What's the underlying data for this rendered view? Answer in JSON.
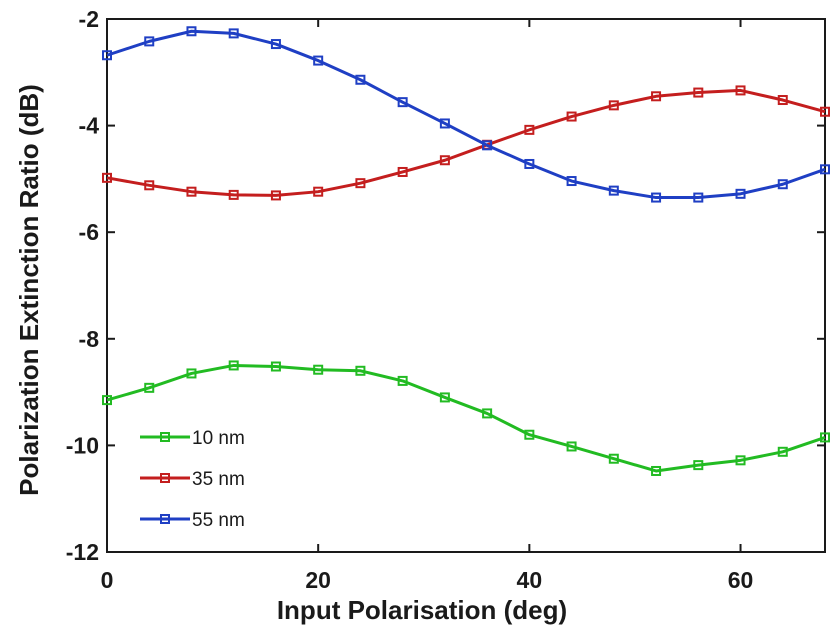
{
  "chart_data": {
    "type": "line",
    "xlabel": "Input Polarisation (deg)",
    "ylabel": "Polarization Extinction Ratio (dB)",
    "xlim": [
      0,
      68
    ],
    "ylim": [
      -12,
      -2
    ],
    "xticks": [
      0,
      20,
      40,
      60
    ],
    "yticks": [
      -12,
      -10,
      -8,
      -6,
      -4,
      -2
    ],
    "x": [
      0,
      4,
      8,
      12,
      16,
      20,
      24,
      28,
      32,
      36,
      40,
      44,
      48,
      52,
      56,
      60,
      64,
      68
    ],
    "series": [
      {
        "name": "10 nm",
        "color": "#22bb22",
        "marker": "square",
        "values": [
          -9.15,
          -8.92,
          -8.65,
          -8.5,
          -8.52,
          -8.58,
          -8.6,
          -8.79,
          -9.1,
          -9.4,
          -9.8,
          -10.02,
          -10.25,
          -10.48,
          -10.37,
          -10.28,
          -10.12,
          -9.85
        ]
      },
      {
        "name": "35 nm",
        "color": "#c41e1e",
        "marker": "square",
        "values": [
          -4.98,
          -5.12,
          -5.24,
          -5.3,
          -5.31,
          -5.24,
          -5.08,
          -4.87,
          -4.65,
          -4.36,
          -4.08,
          -3.83,
          -3.62,
          -3.45,
          -3.38,
          -3.34,
          -3.52,
          -3.74
        ]
      },
      {
        "name": "55 nm",
        "color": "#1f3fc4",
        "marker": "square",
        "values": [
          -2.68,
          -2.42,
          -2.23,
          -2.27,
          -2.47,
          -2.78,
          -3.14,
          -3.56,
          -3.96,
          -4.37,
          -4.72,
          -5.04,
          -5.22,
          -5.35,
          -5.35,
          -5.28,
          -5.1,
          -4.82
        ]
      }
    ],
    "legend_position": "lower-left",
    "grid": false
  }
}
